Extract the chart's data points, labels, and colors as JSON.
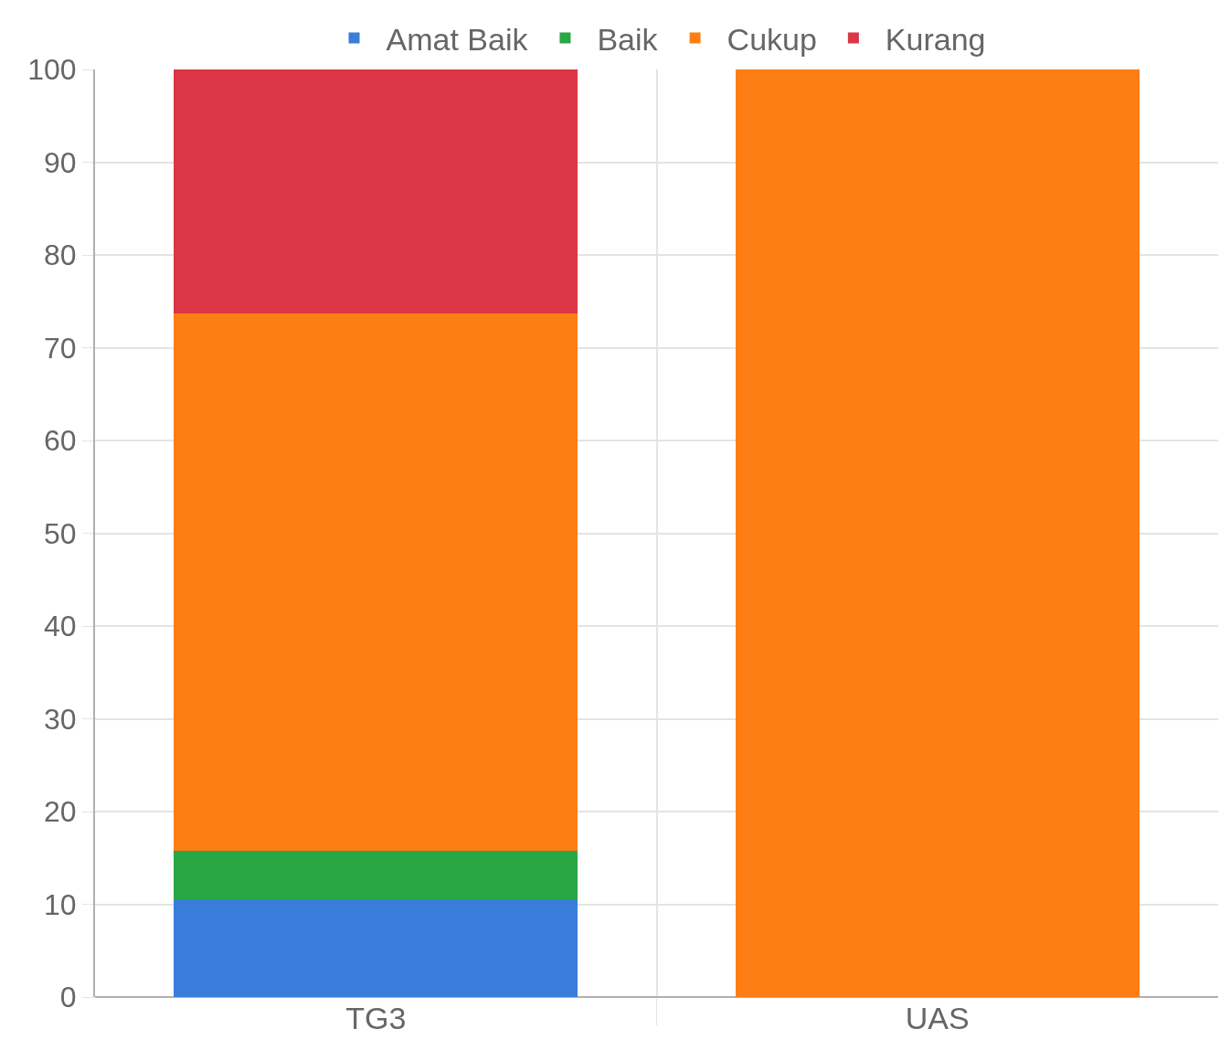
{
  "chart_data": {
    "type": "bar",
    "stacked": true,
    "categories": [
      "TG3",
      "UAS"
    ],
    "series": [
      {
        "name": "Amat Baik",
        "color": "#3a7ddb",
        "values": [
          10.5,
          0
        ]
      },
      {
        "name": "Baik",
        "color": "#28a745",
        "values": [
          5.3,
          0
        ]
      },
      {
        "name": "Cukup",
        "color": "#fd7e14",
        "values": [
          57.9,
          100
        ]
      },
      {
        "name": "Kurang",
        "color": "#dc3545",
        "values": [
          26.3,
          0
        ]
      }
    ],
    "ylim": [
      0,
      100
    ],
    "yticks": [
      0,
      10,
      20,
      30,
      40,
      50,
      60,
      70,
      80,
      90,
      100
    ],
    "grid": true,
    "legend": "top"
  }
}
